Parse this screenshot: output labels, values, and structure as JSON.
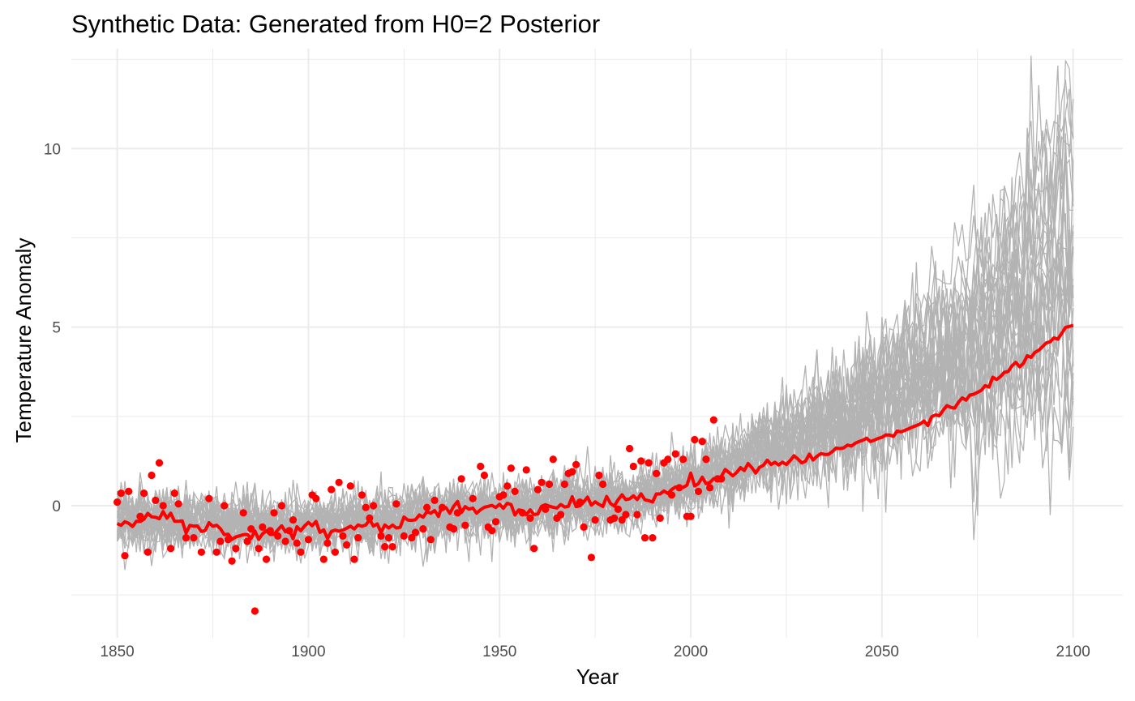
{
  "chart_data": {
    "type": "line",
    "title": "Synthetic Data: Generated from H0=2 Posterior",
    "xlabel": "Year",
    "ylabel": "Temperature Anomaly",
    "xlim": [
      1838,
      2113
    ],
    "ylim": [
      -3.7,
      12.8
    ],
    "x_ticks": [
      1850,
      1900,
      1950,
      2000,
      2050,
      2100
    ],
    "y_ticks": [
      0,
      5,
      10
    ],
    "grid": true,
    "legend": "none",
    "colors": {
      "simulations": "#b3b3b3",
      "mean_line": "#ff0000",
      "observations": "#ff0000",
      "grid": "#ebebeb"
    },
    "x_range": [
      1850,
      2100
    ],
    "series": [
      {
        "kind": "ensemble-lines",
        "count": 30,
        "description_points": [
          [
            1850,
            -0.4
          ],
          [
            1900,
            -0.55
          ],
          [
            1950,
            -0.1
          ],
          [
            1980,
            0.1
          ],
          [
            2000,
            0.6
          ],
          [
            2025,
            1.8
          ],
          [
            2050,
            3.0
          ],
          [
            2075,
            4.6
          ],
          [
            2100,
            7.0
          ]
        ]
      },
      {
        "kind": "mean-line",
        "points": [
          [
            1850,
            -0.45
          ],
          [
            1855,
            -0.4
          ],
          [
            1860,
            -0.3
          ],
          [
            1865,
            -0.35
          ],
          [
            1870,
            -0.7
          ],
          [
            1875,
            -0.55
          ],
          [
            1880,
            -0.8
          ],
          [
            1885,
            -0.85
          ],
          [
            1890,
            -0.7
          ],
          [
            1895,
            -0.75
          ],
          [
            1900,
            -0.5
          ],
          [
            1905,
            -0.8
          ],
          [
            1910,
            -0.6
          ],
          [
            1915,
            -0.55
          ],
          [
            1920,
            -0.55
          ],
          [
            1925,
            -0.45
          ],
          [
            1930,
            -0.25
          ],
          [
            1935,
            -0.15
          ],
          [
            1940,
            -0.05
          ],
          [
            1945,
            -0.1
          ],
          [
            1950,
            0.05
          ],
          [
            1955,
            -0.15
          ],
          [
            1960,
            -0.1
          ],
          [
            1965,
            0.05
          ],
          [
            1970,
            0.05
          ],
          [
            1975,
            0.1
          ],
          [
            1980,
            0.1
          ],
          [
            1985,
            0.2
          ],
          [
            1990,
            0.25
          ],
          [
            1995,
            0.45
          ],
          [
            2000,
            0.7
          ],
          [
            2005,
            0.75
          ],
          [
            2010,
            0.9
          ],
          [
            2015,
            1.0
          ],
          [
            2020,
            1.15
          ],
          [
            2025,
            1.25
          ],
          [
            2030,
            1.3
          ],
          [
            2035,
            1.45
          ],
          [
            2040,
            1.6
          ],
          [
            2045,
            1.8
          ],
          [
            2050,
            1.95
          ],
          [
            2055,
            2.1
          ],
          [
            2060,
            2.3
          ],
          [
            2065,
            2.6
          ],
          [
            2070,
            2.9
          ],
          [
            2075,
            3.2
          ],
          [
            2080,
            3.55
          ],
          [
            2085,
            3.95
          ],
          [
            2090,
            4.3
          ],
          [
            2095,
            4.7
          ],
          [
            2100,
            5.0
          ]
        ]
      },
      {
        "kind": "observations",
        "points": [
          [
            1850,
            0.1
          ],
          [
            1851,
            0.35
          ],
          [
            1852,
            -1.4
          ],
          [
            1853,
            0.4
          ],
          [
            1856,
            -0.3
          ],
          [
            1857,
            0.35
          ],
          [
            1858,
            -1.3
          ],
          [
            1859,
            0.85
          ],
          [
            1860,
            0.15
          ],
          [
            1861,
            1.2
          ],
          [
            1862,
            0.0
          ],
          [
            1864,
            -1.2
          ],
          [
            1865,
            0.35
          ],
          [
            1866,
            0.05
          ],
          [
            1868,
            -0.9
          ],
          [
            1870,
            -0.9
          ],
          [
            1872,
            -1.3
          ],
          [
            1874,
            0.2
          ],
          [
            1876,
            -1.3
          ],
          [
            1877,
            -1.0
          ],
          [
            1878,
            0.0
          ],
          [
            1879,
            -0.95
          ],
          [
            1880,
            -1.55
          ],
          [
            1881,
            -1.2
          ],
          [
            1883,
            -0.2
          ],
          [
            1884,
            -1.0
          ],
          [
            1885,
            -0.65
          ],
          [
            1886,
            -2.95
          ],
          [
            1887,
            -1.2
          ],
          [
            1888,
            -0.6
          ],
          [
            1889,
            -1.5
          ],
          [
            1890,
            -0.7
          ],
          [
            1891,
            -0.2
          ],
          [
            1892,
            -0.85
          ],
          [
            1893,
            0.0
          ],
          [
            1894,
            -1.0
          ],
          [
            1895,
            -0.7
          ],
          [
            1896,
            -0.4
          ],
          [
            1897,
            -1.05
          ],
          [
            1898,
            -1.3
          ],
          [
            1900,
            -0.95
          ],
          [
            1901,
            0.3
          ],
          [
            1902,
            0.2
          ],
          [
            1904,
            -1.5
          ],
          [
            1905,
            -1.05
          ],
          [
            1906,
            0.45
          ],
          [
            1907,
            -1.3
          ],
          [
            1908,
            0.65
          ],
          [
            1909,
            -0.85
          ],
          [
            1910,
            -1.1
          ],
          [
            1911,
            0.55
          ],
          [
            1912,
            -1.5
          ],
          [
            1913,
            -0.9
          ],
          [
            1914,
            0.3
          ],
          [
            1915,
            -0.05
          ],
          [
            1916,
            -0.35
          ],
          [
            1917,
            0.0
          ],
          [
            1919,
            -0.85
          ],
          [
            1920,
            -1.15
          ],
          [
            1921,
            -0.9
          ],
          [
            1922,
            -1.15
          ],
          [
            1923,
            0.05
          ],
          [
            1925,
            -0.85
          ],
          [
            1927,
            -0.9
          ],
          [
            1928,
            -0.75
          ],
          [
            1930,
            -0.65
          ],
          [
            1931,
            -0.05
          ],
          [
            1932,
            -0.95
          ],
          [
            1933,
            0.15
          ],
          [
            1935,
            -0.05
          ],
          [
            1937,
            -0.6
          ],
          [
            1938,
            -0.65
          ],
          [
            1939,
            -0.2
          ],
          [
            1940,
            0.75
          ],
          [
            1941,
            -0.55
          ],
          [
            1943,
            0.2
          ],
          [
            1945,
            1.1
          ],
          [
            1946,
            0.85
          ],
          [
            1947,
            -0.6
          ],
          [
            1948,
            -0.7
          ],
          [
            1949,
            -0.45
          ],
          [
            1950,
            0.25
          ],
          [
            1951,
            0.3
          ],
          [
            1952,
            0.55
          ],
          [
            1953,
            1.05
          ],
          [
            1954,
            0.4
          ],
          [
            1956,
            -0.2
          ],
          [
            1957,
            1.0
          ],
          [
            1958,
            -0.35
          ],
          [
            1959,
            -1.2
          ],
          [
            1960,
            0.45
          ],
          [
            1961,
            0.65
          ],
          [
            1962,
            -0.1
          ],
          [
            1963,
            0.6
          ],
          [
            1964,
            1.3
          ],
          [
            1965,
            -0.35
          ],
          [
            1966,
            -0.25
          ],
          [
            1967,
            0.6
          ],
          [
            1968,
            0.9
          ],
          [
            1969,
            0.95
          ],
          [
            1970,
            1.15
          ],
          [
            1971,
            0.1
          ],
          [
            1972,
            -0.6
          ],
          [
            1974,
            -1.45
          ],
          [
            1975,
            -0.4
          ],
          [
            1976,
            0.85
          ],
          [
            1977,
            0.6
          ],
          [
            1979,
            -0.4
          ],
          [
            1980,
            -0.35
          ],
          [
            1981,
            -0.1
          ],
          [
            1982,
            -0.4
          ],
          [
            1983,
            -0.25
          ],
          [
            1984,
            1.6
          ],
          [
            1985,
            1.1
          ],
          [
            1986,
            -0.25
          ],
          [
            1987,
            1.25
          ],
          [
            1988,
            -0.9
          ],
          [
            1989,
            1.2
          ],
          [
            1990,
            -0.9
          ],
          [
            1991,
            0.9
          ],
          [
            1992,
            -0.35
          ],
          [
            1993,
            1.2
          ],
          [
            1994,
            1.3
          ],
          [
            1995,
            0.3
          ],
          [
            1996,
            1.45
          ],
          [
            1997,
            0.5
          ],
          [
            1998,
            1.3
          ],
          [
            1999,
            -0.3
          ],
          [
            2000,
            -0.3
          ],
          [
            2001,
            1.85
          ],
          [
            2002,
            0.4
          ],
          [
            2003,
            1.8
          ],
          [
            2004,
            1.3
          ],
          [
            2005,
            0.5
          ],
          [
            2006,
            2.4
          ],
          [
            2007,
            0.75
          ],
          [
            2008,
            0.75
          ]
        ]
      }
    ]
  }
}
